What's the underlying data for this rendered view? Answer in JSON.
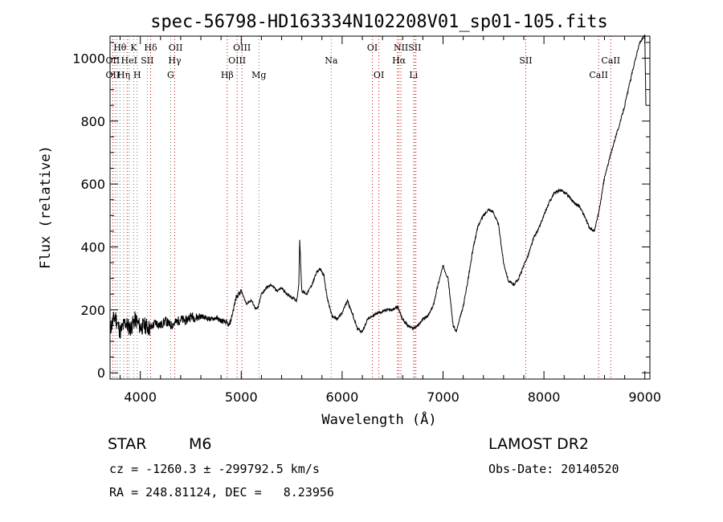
{
  "chart_data": {
    "type": "line",
    "title": "spec-56798-HD163334N102208V01_sp01-105.fits",
    "xlabel": "Wavelength (Å)",
    "ylabel": "Flux (relative)",
    "xlim": [
      3700,
      9050
    ],
    "ylim": [
      -20,
      1070
    ],
    "x_ticks": [
      4000,
      5000,
      6000,
      7000,
      8000,
      9000
    ],
    "y_ticks": [
      0,
      200,
      400,
      600,
      800,
      1000
    ],
    "grid": false,
    "series": [
      {
        "x": [
          3700,
          3750,
          3800,
          3850,
          3900,
          3950,
          4000,
          4050,
          4100,
          4150,
          4200,
          4250,
          4300,
          4350,
          4400,
          4450,
          4500,
          4550,
          4600,
          4650,
          4700,
          4750,
          4800,
          4850,
          4880,
          4900,
          4950,
          5000,
          5050,
          5100,
          5150,
          5170,
          5200,
          5250,
          5300,
          5350,
          5400,
          5450,
          5500,
          5550,
          5570,
          5580,
          5600,
          5650,
          5700,
          5750,
          5780,
          5820,
          5850,
          5900,
          5950,
          6000,
          6050,
          6100,
          6150,
          6200,
          6250,
          6300,
          6350,
          6400,
          6450,
          6500,
          6550,
          6600,
          6650,
          6700,
          6750,
          6800,
          6850,
          6900,
          6950,
          7000,
          7050,
          7100,
          7130,
          7200,
          7250,
          7300,
          7350,
          7400,
          7450,
          7500,
          7550,
          7600,
          7650,
          7700,
          7750,
          7800,
          7850,
          7900,
          7950,
          8000,
          8050,
          8100,
          8150,
          8200,
          8250,
          8300,
          8350,
          8400,
          8450,
          8500,
          8550,
          8600,
          8650,
          8700,
          8750,
          8800,
          8850,
          8900,
          8950,
          9000,
          9010
        ],
        "y": [
          140,
          180,
          130,
          160,
          140,
          170,
          145,
          150,
          140,
          160,
          150,
          165,
          150,
          160,
          170,
          165,
          180,
          175,
          180,
          175,
          170,
          175,
          165,
          160,
          150,
          170,
          240,
          260,
          220,
          230,
          200,
          210,
          250,
          270,
          280,
          260,
          270,
          250,
          240,
          230,
          280,
          420,
          260,
          250,
          280,
          320,
          330,
          310,
          240,
          180,
          170,
          190,
          230,
          190,
          140,
          130,
          170,
          180,
          190,
          195,
          200,
          200,
          210,
          170,
          150,
          140,
          150,
          170,
          180,
          210,
          280,
          340,
          300,
          150,
          130,
          210,
          300,
          400,
          470,
          500,
          520,
          510,
          470,
          350,
          290,
          280,
          300,
          340,
          380,
          430,
          460,
          500,
          540,
          570,
          580,
          575,
          560,
          540,
          530,
          500,
          460,
          450,
          520,
          620,
          680,
          740,
          790,
          850,
          920,
          990,
          1050,
          1070,
          850
        ]
      }
    ],
    "line_ids": [
      {
        "label": "Hθ",
        "x": 3798,
        "row": 1
      },
      {
        "label": "K",
        "x": 3934,
        "row": 1
      },
      {
        "label": "Hδ",
        "x": 4102,
        "row": 1
      },
      {
        "label": "OII",
        "x": 4350,
        "row": 1
      },
      {
        "label": "OIII",
        "x": 5007,
        "row": 1
      },
      {
        "label": "OI",
        "x": 6300,
        "row": 1
      },
      {
        "label": "NII",
        "x": 6583,
        "row": 1
      },
      {
        "label": "SII",
        "x": 6720,
        "row": 1
      },
      {
        "label": "OII",
        "x": 3727,
        "row": 2
      },
      {
        "label": "HeI",
        "x": 3889,
        "row": 2
      },
      {
        "label": "SII",
        "x": 4069,
        "row": 2
      },
      {
        "label": "Hγ",
        "x": 4341,
        "row": 2
      },
      {
        "label": "OIII",
        "x": 4959,
        "row": 2
      },
      {
        "label": "Na",
        "x": 5892,
        "row": 2
      },
      {
        "label": "Hα",
        "x": 6563,
        "row": 2
      },
      {
        "label": "SII",
        "x": 7820,
        "row": 2
      },
      {
        "label": "CaII",
        "x": 8662,
        "row": 2
      },
      {
        "label": "OII",
        "x": 3727,
        "row": 3
      },
      {
        "label": "Hη",
        "x": 3835,
        "row": 3
      },
      {
        "label": "H",
        "x": 3969,
        "row": 3
      },
      {
        "label": "G",
        "x": 4300,
        "row": 3
      },
      {
        "label": "Hβ",
        "x": 4861,
        "row": 3
      },
      {
        "label": "Mg",
        "x": 5175,
        "row": 3
      },
      {
        "label": "OI",
        "x": 6364,
        "row": 3
      },
      {
        "label": "Li",
        "x": 6708,
        "row": 3
      },
      {
        "label": "CaII",
        "x": 8542,
        "row": 3
      }
    ],
    "line_x_emission": [
      3727,
      3869,
      4102,
      4341,
      4861,
      4959,
      5007,
      6300,
      6364,
      6548,
      6563,
      6583,
      6716,
      6731,
      7820,
      8542,
      8662
    ],
    "line_x_absorption": [
      3750,
      3770,
      3798,
      3835,
      3889,
      3934,
      3969,
      4069,
      4300,
      5175,
      5892,
      6708
    ],
    "colors": {
      "emission_marker": "#cc0000",
      "absorption_marker": "#777777",
      "curve": "#000000"
    }
  },
  "info": {
    "obj_class": "STAR",
    "subclass": "M6",
    "survey": "LAMOST DR2",
    "cz": "cz = -1260.3 ± -299792.5 km/s",
    "obs_date": "Obs-Date: 20140520",
    "coords": "RA = 248.81124, DEC =   8.23956"
  }
}
